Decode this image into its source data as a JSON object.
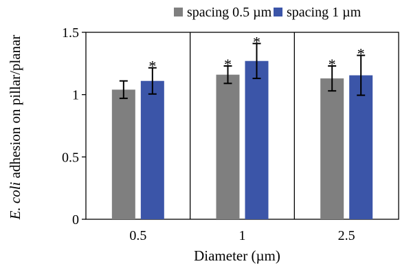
{
  "chart_data": {
    "type": "bar",
    "title": "",
    "xlabel": "Diameter (µm)",
    "ylabel_italic": "E. coli",
    "ylabel_rest": " adhesion on pillar/planar",
    "categories": [
      "0.5",
      "1",
      "2.5"
    ],
    "series": [
      {
        "name": "spacing 0.5 µm",
        "color": "#7f7f7f",
        "values": [
          1.04,
          1.16,
          1.13
        ],
        "errors": [
          0.07,
          0.07,
          0.1
        ],
        "significant": [
          false,
          true,
          true
        ]
      },
      {
        "name": "spacing 1 µm",
        "color": "#3b55a8",
        "values": [
          1.11,
          1.27,
          1.155
        ],
        "errors": [
          0.105,
          0.14,
          0.16
        ],
        "significant": [
          true,
          true,
          true
        ]
      }
    ],
    "significance_marker": "*",
    "ylim": [
      0,
      1.5
    ],
    "yticks": [
      0,
      0.5,
      1,
      1.5
    ],
    "ytick_labels": [
      "0",
      "0.5",
      "1",
      "1.5"
    ],
    "grid": false,
    "legend_position": "top"
  }
}
